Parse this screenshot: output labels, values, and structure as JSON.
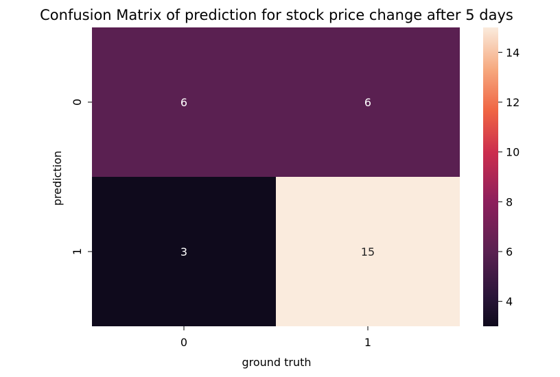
{
  "chart_data": {
    "type": "heatmap",
    "title": "Confusion Matrix of prediction for stock price change after 5 days",
    "xlabel": "ground truth",
    "ylabel": "prediction",
    "x_categories": [
      "0",
      "1"
    ],
    "y_categories": [
      "0",
      "1"
    ],
    "values": [
      [
        6,
        6
      ],
      [
        3,
        15
      ]
    ],
    "colormap": "rocket",
    "colorbar": {
      "range": [
        3,
        15
      ],
      "ticks": [
        4,
        6,
        8,
        10,
        12,
        14
      ],
      "tick_labels": [
        "4",
        "6",
        "8",
        "10",
        "12",
        "14"
      ]
    }
  }
}
